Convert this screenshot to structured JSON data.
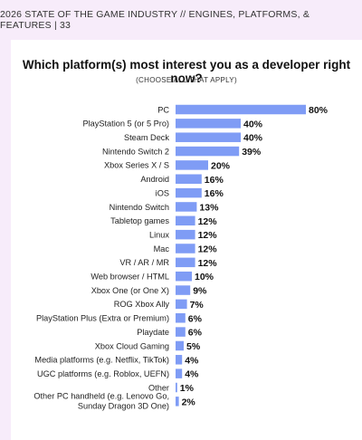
{
  "header": {
    "text": "2026 STATE OF THE GAME INDUSTRY  //  ENGINES, PLATFORMS, & FEATURES  |  33"
  },
  "chart_data": {
    "type": "bar",
    "orientation": "horizontal",
    "title": "Which platform(s) most interest you as a developer right now?",
    "subtitle": "(CHOOSE ALL THAT APPLY)",
    "bar_color": "#7f9cf5",
    "categories": [
      "PC",
      "PlayStation 5 (or 5 Pro)",
      "Steam Deck",
      "Nintendo Switch 2",
      "Xbox Series X / S",
      "Android",
      "iOS",
      "Nintendo Switch",
      "Tabletop games",
      "Linux",
      "Mac",
      "VR / AR / MR",
      "Web browser / HTML",
      "Xbox One (or One X)",
      "ROG Xbox Ally",
      "PlayStation Plus (Extra or Premium)",
      "Playdate",
      "Xbox Cloud Gaming",
      "Media platforms (e.g. Netflix, TikTok)",
      "UGC platforms (e.g. Roblox, UEFN)",
      "Other",
      [
        "Other PC handheld (e.g. Lenovo Go,",
        "Sunday Dragon 3D One)"
      ]
    ],
    "values": [
      80,
      40,
      40,
      39,
      20,
      16,
      16,
      13,
      12,
      12,
      12,
      12,
      10,
      9,
      7,
      6,
      6,
      5,
      4,
      4,
      1,
      2
    ],
    "value_labels": [
      "80%",
      "40%",
      "40%",
      "39%",
      "20%",
      "16%",
      "16%",
      "13%",
      "12%",
      "12%",
      "12%",
      "12%",
      "10%",
      "9%",
      "7%",
      "6%",
      "6%",
      "5%",
      "4%",
      "4%",
      "1%",
      "2%"
    ],
    "xlim": [
      0,
      80
    ]
  }
}
